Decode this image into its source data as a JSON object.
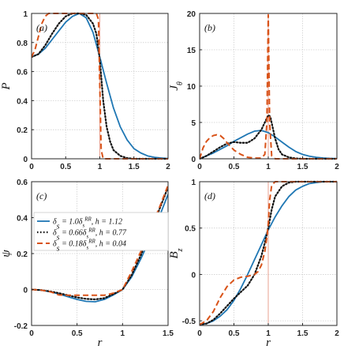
{
  "chart_data": [
    {
      "id": "a",
      "type": "line",
      "panel_label": "(a)",
      "xlabel": "",
      "ylabel": "P",
      "xlim": [
        0,
        2
      ],
      "ylim": [
        0,
        1
      ],
      "xticks": [
        0,
        0.5,
        1,
        1.5,
        2
      ],
      "xtick_labels": [
        "0",
        "0.5",
        "1",
        "1.5",
        "2"
      ],
      "yticks": [
        0,
        0.2,
        0.4,
        0.6,
        0.8,
        1
      ],
      "ytick_labels": [
        "0",
        "0.2",
        "0.4",
        "0.6",
        "0.8",
        "1"
      ],
      "vline_x": 1,
      "series": [
        {
          "x": [
            0,
            0.1,
            0.2,
            0.3,
            0.4,
            0.5,
            0.6,
            0.7,
            0.8,
            0.9,
            1.0,
            1.1,
            1.2,
            1.3,
            1.4,
            1.5,
            1.6,
            1.7,
            1.8,
            1.9,
            2.0
          ],
          "y": [
            0.7,
            0.72,
            0.76,
            0.82,
            0.88,
            0.94,
            0.98,
            1.0,
            0.97,
            0.87,
            0.7,
            0.52,
            0.35,
            0.22,
            0.13,
            0.07,
            0.04,
            0.02,
            0.01,
            0.005,
            0.002
          ]
        },
        {
          "x": [
            0,
            0.1,
            0.2,
            0.3,
            0.4,
            0.5,
            0.6,
            0.7,
            0.8,
            0.9,
            0.95,
            1.0,
            1.05,
            1.1,
            1.15,
            1.2,
            1.3,
            1.4,
            1.5,
            1.7,
            2.0
          ],
          "y": [
            0.7,
            0.72,
            0.78,
            0.86,
            0.93,
            0.98,
            1.0,
            1.0,
            0.99,
            0.93,
            0.86,
            0.68,
            0.4,
            0.22,
            0.12,
            0.06,
            0.02,
            0.005,
            0.0,
            0.0,
            0.0
          ]
        },
        {
          "x": [
            0,
            0.05,
            0.1,
            0.15,
            0.2,
            0.25,
            0.3,
            0.4,
            0.5,
            0.6,
            0.7,
            0.8,
            0.9,
            0.95,
            0.98,
            1.0,
            1.02,
            1.05,
            1.1,
            1.5,
            2.0
          ],
          "y": [
            0.7,
            0.75,
            0.84,
            0.93,
            0.98,
            1.0,
            1.0,
            1.0,
            1.0,
            1.0,
            1.0,
            1.0,
            1.0,
            1.0,
            0.96,
            0.5,
            0.06,
            0.0,
            0.0,
            0.0,
            0.0
          ]
        }
      ]
    },
    {
      "id": "b",
      "type": "line",
      "panel_label": "(b)",
      "xlabel": "",
      "ylabel": "J_θ",
      "xlim": [
        0,
        2
      ],
      "ylim": [
        0,
        20
      ],
      "xticks": [
        0,
        0.5,
        1,
        1.5,
        2
      ],
      "xtick_labels": [
        "0",
        "0.5",
        "1",
        "1.5",
        "2"
      ],
      "yticks": [
        0,
        5,
        10,
        15,
        20
      ],
      "ytick_labels": [
        "0",
        "5",
        "10",
        "15",
        "20"
      ],
      "vline_x": 1,
      "series": [
        {
          "x": [
            0,
            0.1,
            0.2,
            0.3,
            0.4,
            0.5,
            0.6,
            0.7,
            0.8,
            0.9,
            1.0,
            1.1,
            1.2,
            1.3,
            1.4,
            1.5,
            1.6,
            1.7,
            1.8,
            1.9,
            2.0
          ],
          "y": [
            0,
            0.4,
            0.8,
            1.3,
            1.8,
            2.4,
            2.9,
            3.4,
            3.8,
            3.9,
            3.6,
            3.0,
            2.3,
            1.6,
            1.0,
            0.6,
            0.35,
            0.2,
            0.1,
            0.05,
            0.02
          ]
        },
        {
          "x": [
            0,
            0.1,
            0.2,
            0.3,
            0.4,
            0.5,
            0.6,
            0.7,
            0.8,
            0.9,
            0.95,
            1.0,
            1.03,
            1.06,
            1.1,
            1.15,
            1.2,
            1.3,
            1.4,
            1.5,
            2.0
          ],
          "y": [
            0,
            0.4,
            1.0,
            1.6,
            2.1,
            2.3,
            2.2,
            2.2,
            2.8,
            4.0,
            5.0,
            6.0,
            5.8,
            4.5,
            2.8,
            1.3,
            0.6,
            0.2,
            0.05,
            0.0,
            0.0
          ]
        },
        {
          "x": [
            0,
            0.05,
            0.1,
            0.15,
            0.2,
            0.25,
            0.3,
            0.35,
            0.4,
            0.5,
            0.6,
            0.7,
            0.8,
            0.9,
            0.95,
            0.98,
            1.0,
            1.02,
            1.05,
            1.1,
            2.0
          ],
          "y": [
            0,
            1.5,
            2.4,
            2.9,
            3.2,
            3.3,
            3.2,
            2.8,
            2.2,
            1.2,
            0.6,
            0.2,
            0.1,
            0.1,
            0.6,
            5.0,
            19.8,
            5.0,
            0.4,
            0.0,
            0.0
          ]
        }
      ]
    },
    {
      "id": "c",
      "type": "line",
      "panel_label": "(c)",
      "xlabel": "r",
      "ylabel": "ψ",
      "xlim": [
        0,
        1.5
      ],
      "ylim": [
        -0.2,
        0.6
      ],
      "xticks": [
        0,
        0.5,
        1,
        1.5
      ],
      "xtick_labels": [
        "0",
        "0.5",
        "1",
        "1.5"
      ],
      "yticks": [
        -0.2,
        0,
        0.2,
        0.4,
        0.6
      ],
      "ytick_labels": [
        "-0.2",
        "0",
        "0.2",
        "0.4",
        "0.6"
      ],
      "legend": [
        "δs = 1.0δs^RR, h = 1.12",
        "δs = 0.66δs^RR, h = 0.77",
        "δs = 0.18δs^RR, h = 0.04"
      ],
      "legend_position": "middle-left",
      "series": [
        {
          "x": [
            0,
            0.1,
            0.2,
            0.3,
            0.4,
            0.5,
            0.6,
            0.7,
            0.8,
            0.9,
            1.0,
            1.1,
            1.2,
            1.3,
            1.4,
            1.5
          ],
          "y": [
            0,
            -0.003,
            -0.012,
            -0.025,
            -0.04,
            -0.055,
            -0.066,
            -0.068,
            -0.055,
            -0.03,
            0.0,
            0.07,
            0.17,
            0.28,
            0.4,
            0.53
          ]
        },
        {
          "x": [
            0,
            0.1,
            0.2,
            0.3,
            0.4,
            0.5,
            0.6,
            0.7,
            0.8,
            0.9,
            1.0,
            1.1,
            1.2,
            1.3,
            1.4,
            1.5
          ],
          "y": [
            0,
            -0.003,
            -0.01,
            -0.02,
            -0.032,
            -0.044,
            -0.052,
            -0.055,
            -0.048,
            -0.025,
            0.0,
            0.08,
            0.19,
            0.31,
            0.44,
            0.57
          ]
        },
        {
          "x": [
            0,
            0.1,
            0.2,
            0.25,
            0.3,
            0.4,
            0.5,
            0.6,
            0.7,
            0.8,
            0.9,
            1.0,
            1.1,
            1.2,
            1.3,
            1.4,
            1.5
          ],
          "y": [
            0,
            -0.003,
            -0.012,
            -0.02,
            -0.03,
            -0.032,
            -0.032,
            -0.032,
            -0.032,
            -0.032,
            -0.02,
            0.0,
            0.1,
            0.21,
            0.33,
            0.45,
            0.58
          ]
        }
      ]
    },
    {
      "id": "d",
      "type": "line",
      "panel_label": "(d)",
      "xlabel": "r",
      "ylabel": "B_z",
      "xlim": [
        0,
        2
      ],
      "ylim": [
        -0.55,
        1.0
      ],
      "xticks": [
        0,
        0.5,
        1,
        1.5,
        2
      ],
      "xtick_labels": [
        "0",
        "0.5",
        "1",
        "1.5",
        "2"
      ],
      "yticks": [
        -0.5,
        0,
        0.5,
        1
      ],
      "ytick_labels": [
        "-0.5",
        "0",
        "0.5",
        "1"
      ],
      "vline_x": 1,
      "series": [
        {
          "x": [
            0,
            0.1,
            0.2,
            0.3,
            0.4,
            0.5,
            0.6,
            0.7,
            0.8,
            0.9,
            1.0,
            1.1,
            1.2,
            1.3,
            1.4,
            1.5,
            1.6,
            1.7,
            1.8,
            1.9,
            2.0
          ],
          "y": [
            -0.54,
            -0.53,
            -0.5,
            -0.45,
            -0.38,
            -0.28,
            -0.15,
            0.0,
            0.16,
            0.32,
            0.48,
            0.62,
            0.74,
            0.84,
            0.91,
            0.95,
            0.98,
            0.99,
            1.0,
            1.0,
            1.0
          ]
        },
        {
          "x": [
            0,
            0.1,
            0.2,
            0.3,
            0.4,
            0.5,
            0.6,
            0.7,
            0.8,
            0.9,
            0.95,
            1.0,
            1.05,
            1.1,
            1.2,
            1.3,
            1.4,
            1.5,
            2.0
          ],
          "y": [
            -0.54,
            -0.53,
            -0.49,
            -0.42,
            -0.34,
            -0.26,
            -0.19,
            -0.12,
            0.0,
            0.2,
            0.34,
            0.5,
            0.7,
            0.84,
            0.95,
            0.99,
            1.0,
            1.0,
            1.0
          ]
        },
        {
          "x": [
            0,
            0.1,
            0.2,
            0.3,
            0.4,
            0.5,
            0.6,
            0.7,
            0.8,
            0.85,
            0.9,
            0.95,
            0.98,
            1.0,
            1.02,
            1.05,
            1.1,
            1.2,
            1.5,
            2.0
          ],
          "y": [
            -0.54,
            -0.5,
            -0.4,
            -0.25,
            -0.13,
            -0.06,
            -0.03,
            -0.02,
            0.0,
            0.03,
            0.1,
            0.25,
            0.4,
            0.55,
            0.8,
            0.96,
            1.0,
            1.0,
            1.0,
            1.0
          ]
        }
      ]
    }
  ],
  "series_styles": [
    {
      "color": "#1f77b4",
      "dash": "",
      "width": 1.8
    },
    {
      "color": "#111111",
      "dash": "1.5 2.5",
      "width": 2.2
    },
    {
      "color": "#d95319",
      "dash": "7 4",
      "width": 2.0
    }
  ],
  "vline_color": "#e8a090"
}
